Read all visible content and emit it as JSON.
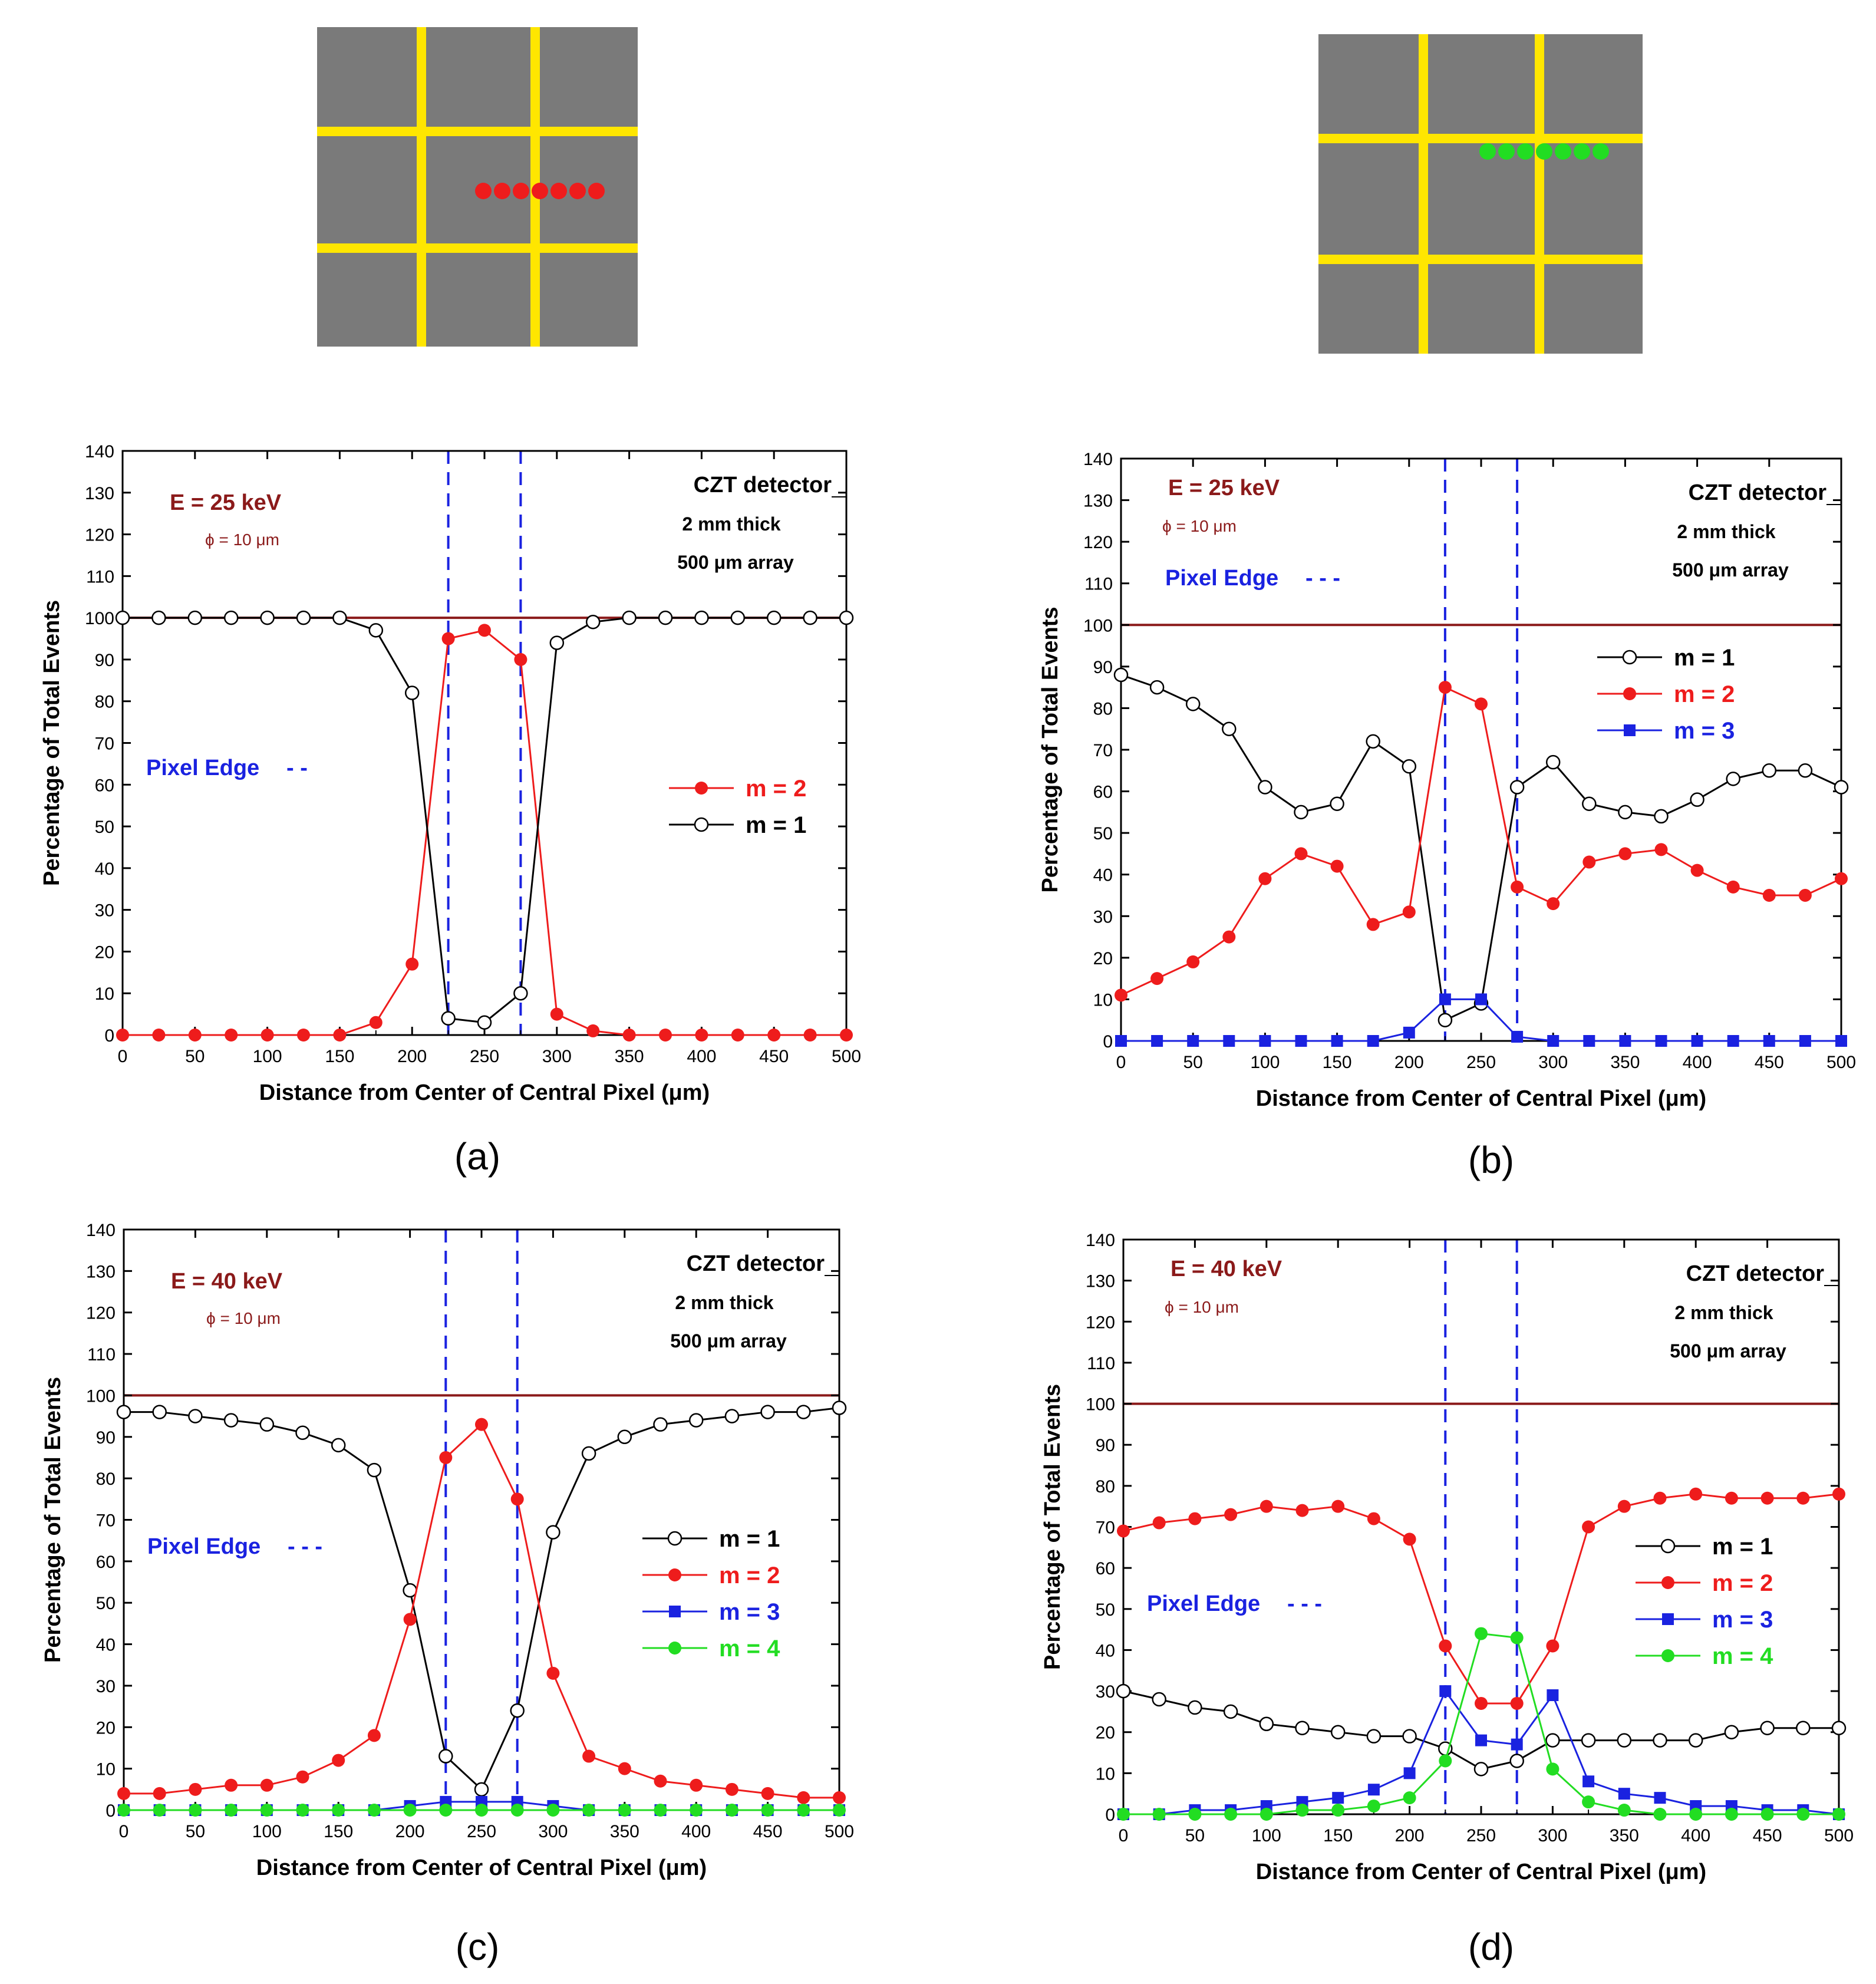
{
  "colors": {
    "pixel_fill": "#7a7a7a",
    "pixel_gap": "#ffe600",
    "m1": "#000000",
    "m2": "#ee1c1c",
    "m3": "#1a22e0",
    "m4": "#22dd22",
    "line_100": "#8b1a1a",
    "energy_label": "#8b1a1a",
    "edge_label": "#1a22e0",
    "dashed_edge": "#1a22e0"
  },
  "diagrams": [
    {
      "name": "diagram-left",
      "dot_color": "#ee1c1c",
      "dot_count": 7,
      "dot_row": "center"
    },
    {
      "name": "diagram-right",
      "dot_color": "#22dd22",
      "dot_count": 7,
      "dot_row": "edge"
    }
  ],
  "chart_data": [
    {
      "type": "line",
      "panel_label": "(a)",
      "energy": "E = 25 keV",
      "phi": "ϕ = 10 μm",
      "detector": "CZT detector",
      "thickness": "2 mm thick",
      "array": "500 μm array",
      "edge_label": "Pixel Edge",
      "edge_dash": "- -",
      "xlabel": "Distance from Center of Central Pixel (μm)",
      "ylabel": "Percentage of Total Events",
      "xlim": [
        0,
        500
      ],
      "ylim": [
        0,
        140
      ],
      "xticks": [
        0,
        50,
        100,
        150,
        200,
        250,
        300,
        350,
        400,
        450,
        500
      ],
      "yticks": [
        0,
        10,
        20,
        30,
        40,
        50,
        60,
        70,
        80,
        90,
        100,
        110,
        120,
        130,
        140
      ],
      "pixel_edges": [
        225,
        275
      ],
      "reference_line": 100,
      "x": [
        0,
        25,
        50,
        75,
        100,
        125,
        150,
        175,
        200,
        225,
        250,
        275,
        300,
        325,
        350,
        375,
        400,
        425,
        450,
        475,
        500
      ],
      "legend_order": [
        "m = 2",
        "m = 1"
      ],
      "series": [
        {
          "name": "m = 2",
          "color_key": "m2",
          "marker": "filled-circle",
          "values": [
            0,
            0,
            0,
            0,
            0,
            0,
            0,
            3,
            17,
            95,
            97,
            90,
            5,
            1,
            0,
            0,
            0,
            0,
            0,
            0,
            0
          ]
        },
        {
          "name": "m = 1",
          "color_key": "m1",
          "marker": "open-circle",
          "values": [
            100,
            100,
            100,
            100,
            100,
            100,
            100,
            97,
            82,
            4,
            3,
            10,
            94,
            99,
            100,
            100,
            100,
            100,
            100,
            100,
            100
          ]
        }
      ]
    },
    {
      "type": "line",
      "panel_label": "(b)",
      "energy": "E = 25 keV",
      "phi": "ϕ = 10 μm",
      "detector": "CZT detector",
      "thickness": "2 mm thick",
      "array": "500 μm array",
      "edge_label": "Pixel Edge",
      "edge_dash": "- - -",
      "xlabel": "Distance from Center of Central Pixel (μm)",
      "ylabel": "Percentage of Total Events",
      "xlim": [
        0,
        500
      ],
      "ylim": [
        0,
        140
      ],
      "xticks": [
        0,
        50,
        100,
        150,
        200,
        250,
        300,
        350,
        400,
        450,
        500
      ],
      "yticks": [
        0,
        10,
        20,
        30,
        40,
        50,
        60,
        70,
        80,
        90,
        100,
        110,
        120,
        130,
        140
      ],
      "pixel_edges": [
        225,
        275
      ],
      "reference_line": 100,
      "x": [
        0,
        25,
        50,
        75,
        100,
        125,
        150,
        175,
        200,
        225,
        250,
        275,
        300,
        325,
        350,
        375,
        400,
        425,
        450,
        475,
        500
      ],
      "legend_order": [
        "m = 1",
        "m = 2",
        "m = 3"
      ],
      "series": [
        {
          "name": "m = 1",
          "color_key": "m1",
          "marker": "open-circle",
          "values": [
            88,
            85,
            81,
            75,
            61,
            55,
            57,
            72,
            66,
            5,
            9,
            61,
            67,
            57,
            55,
            54,
            58,
            63,
            65,
            65,
            61
          ]
        },
        {
          "name": "m = 2",
          "color_key": "m2",
          "marker": "filled-circle",
          "values": [
            11,
            15,
            19,
            25,
            39,
            45,
            42,
            28,
            31,
            85,
            81,
            37,
            33,
            43,
            45,
            46,
            41,
            37,
            35,
            35,
            39
          ]
        },
        {
          "name": "m = 3",
          "color_key": "m3",
          "marker": "filled-square",
          "values": [
            0,
            0,
            0,
            0,
            0,
            0,
            0,
            0,
            2,
            10,
            10,
            1,
            0,
            0,
            0,
            0,
            0,
            0,
            0,
            0,
            0
          ]
        }
      ]
    },
    {
      "type": "line",
      "panel_label": "(c)",
      "energy": "E = 40 keV",
      "phi": "ϕ = 10 μm",
      "detector": "CZT detector",
      "thickness": "2 mm thick",
      "array": "500 μm array",
      "edge_label": "Pixel Edge",
      "edge_dash": "- - -",
      "xlabel": "Distance from Center of Central Pixel (μm)",
      "ylabel": "Percentage of Total Events",
      "xlim": [
        0,
        500
      ],
      "ylim": [
        0,
        140
      ],
      "xticks": [
        0,
        50,
        100,
        150,
        200,
        250,
        300,
        350,
        400,
        450,
        500
      ],
      "yticks": [
        0,
        10,
        20,
        30,
        40,
        50,
        60,
        70,
        80,
        90,
        100,
        110,
        120,
        130,
        140
      ],
      "pixel_edges": [
        225,
        275
      ],
      "reference_line": 100,
      "x": [
        0,
        25,
        50,
        75,
        100,
        125,
        150,
        175,
        200,
        225,
        250,
        275,
        300,
        325,
        350,
        375,
        400,
        425,
        450,
        475,
        500
      ],
      "legend_order": [
        "m = 1",
        "m = 2",
        "m = 3",
        "m = 4"
      ],
      "series": [
        {
          "name": "m = 1",
          "color_key": "m1",
          "marker": "open-circle",
          "values": [
            96,
            96,
            95,
            94,
            93,
            91,
            88,
            82,
            53,
            13,
            5,
            24,
            67,
            86,
            90,
            93,
            94,
            95,
            96,
            96,
            97
          ]
        },
        {
          "name": "m = 2",
          "color_key": "m2",
          "marker": "filled-circle",
          "values": [
            4,
            4,
            5,
            6,
            6,
            8,
            12,
            18,
            46,
            85,
            93,
            75,
            33,
            13,
            10,
            7,
            6,
            5,
            4,
            3,
            3
          ]
        },
        {
          "name": "m = 3",
          "color_key": "m3",
          "marker": "filled-square",
          "values": [
            0,
            0,
            0,
            0,
            0,
            0,
            0,
            0,
            1,
            2,
            2,
            2,
            1,
            0,
            0,
            0,
            0,
            0,
            0,
            0,
            0
          ]
        },
        {
          "name": "m = 4",
          "color_key": "m4",
          "marker": "filled-circle",
          "values": [
            0,
            0,
            0,
            0,
            0,
            0,
            0,
            0,
            0,
            0,
            0,
            0,
            0,
            0,
            0,
            0,
            0,
            0,
            0,
            0,
            0
          ]
        }
      ]
    },
    {
      "type": "line",
      "panel_label": "(d)",
      "energy": "E = 40 keV",
      "phi": "ϕ = 10 μm",
      "detector": "CZT detector",
      "thickness": "2 mm thick",
      "array": "500 μm array",
      "edge_label": "Pixel Edge",
      "edge_dash": "- - -",
      "xlabel": "Distance from Center of Central Pixel (μm)",
      "ylabel": "Percentage of Total Events",
      "xlim": [
        0,
        500
      ],
      "ylim": [
        0,
        140
      ],
      "xticks": [
        0,
        50,
        100,
        150,
        200,
        250,
        300,
        350,
        400,
        450,
        500
      ],
      "yticks": [
        0,
        10,
        20,
        30,
        40,
        50,
        60,
        70,
        80,
        90,
        100,
        110,
        120,
        130,
        140
      ],
      "pixel_edges": [
        225,
        275
      ],
      "reference_line": 100,
      "x": [
        0,
        25,
        50,
        75,
        100,
        125,
        150,
        175,
        200,
        225,
        250,
        275,
        300,
        325,
        350,
        375,
        400,
        425,
        450,
        475,
        500
      ],
      "legend_order": [
        "m = 1",
        "m = 2",
        "m = 3",
        "m = 4"
      ],
      "series": [
        {
          "name": "m = 1",
          "color_key": "m1",
          "marker": "open-circle",
          "values": [
            30,
            28,
            26,
            25,
            22,
            21,
            20,
            19,
            19,
            16,
            11,
            13,
            18,
            18,
            18,
            18,
            18,
            20,
            21,
            21,
            21
          ]
        },
        {
          "name": "m = 2",
          "color_key": "m2",
          "marker": "filled-circle",
          "values": [
            69,
            71,
            72,
            73,
            75,
            74,
            75,
            72,
            67,
            41,
            27,
            27,
            41,
            70,
            75,
            77,
            78,
            77,
            77,
            77,
            78
          ]
        },
        {
          "name": "m = 3",
          "color_key": "m3",
          "marker": "filled-square",
          "values": [
            0,
            0,
            1,
            1,
            2,
            3,
            4,
            6,
            10,
            30,
            18,
            17,
            29,
            8,
            5,
            4,
            2,
            2,
            1,
            1,
            0
          ]
        },
        {
          "name": "m = 4",
          "color_key": "m4",
          "marker": "filled-circle",
          "values": [
            0,
            0,
            0,
            0,
            0,
            1,
            1,
            2,
            4,
            13,
            44,
            43,
            11,
            3,
            1,
            0,
            0,
            0,
            0,
            0,
            0
          ]
        }
      ]
    }
  ]
}
